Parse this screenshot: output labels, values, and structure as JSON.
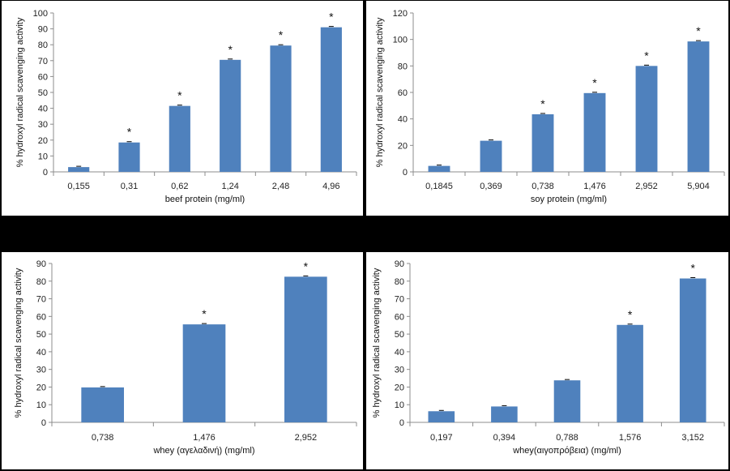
{
  "chart_data": [
    {
      "type": "bar",
      "categories": [
        "0,155",
        "0,31",
        "0,62",
        "1,24",
        "2,48",
        "4,96"
      ],
      "values": [
        3,
        18.5,
        41.5,
        70.5,
        79.5,
        91
      ],
      "significant": [
        false,
        true,
        true,
        true,
        true,
        true
      ],
      "xlabel": "beef protein (mg/ml)",
      "ylabel": "% hydroxyl radical scavenging activity",
      "ylim": [
        0,
        100
      ],
      "yticks": [
        0,
        10,
        20,
        30,
        40,
        50,
        60,
        70,
        80,
        90,
        100
      ],
      "marker": "*",
      "bar_color": "#4f81bd",
      "grid": false
    },
    {
      "type": "bar",
      "categories": [
        "0,1845",
        "0,369",
        "0,738",
        "1,476",
        "2,952",
        "5,904"
      ],
      "values": [
        4.5,
        23.5,
        43.5,
        59.5,
        80,
        98.5
      ],
      "significant": [
        false,
        false,
        true,
        true,
        true,
        true
      ],
      "xlabel": "soy protein (mg/ml)",
      "ylabel": "% hydroxyl radical scavenging activity",
      "ylim": [
        0,
        120
      ],
      "yticks": [
        0,
        20,
        40,
        60,
        80,
        100,
        120
      ],
      "marker": "*",
      "bar_color": "#4f81bd",
      "grid": false
    },
    {
      "type": "bar",
      "categories": [
        "0,738",
        "1,476",
        "2,952"
      ],
      "values": [
        19.8,
        55.5,
        82.5
      ],
      "significant": [
        false,
        true,
        true
      ],
      "xlabel": "whey (αγελαδινή) (mg/ml)",
      "ylabel": "% hydroxyl radical scavenging activity",
      "ylim": [
        0,
        90
      ],
      "yticks": [
        0,
        10,
        20,
        30,
        40,
        50,
        60,
        70,
        80,
        90
      ],
      "marker": "*",
      "bar_color": "#4f81bd",
      "grid": false
    },
    {
      "type": "bar",
      "categories": [
        "0,197",
        "0,394",
        "0,788",
        "1,576",
        "3,152"
      ],
      "values": [
        6.3,
        9,
        23.8,
        55.2,
        81.5
      ],
      "significant": [
        false,
        false,
        false,
        true,
        true
      ],
      "xlabel": "whey(αιγοπρόβεια) (mg/ml)",
      "ylabel": "% hydroxyl radical scavenging activity",
      "ylim": [
        0,
        90
      ],
      "yticks": [
        0,
        10,
        20,
        30,
        40,
        50,
        60,
        70,
        80,
        90
      ],
      "marker": "*",
      "bar_color": "#4f81bd",
      "grid": false
    }
  ]
}
